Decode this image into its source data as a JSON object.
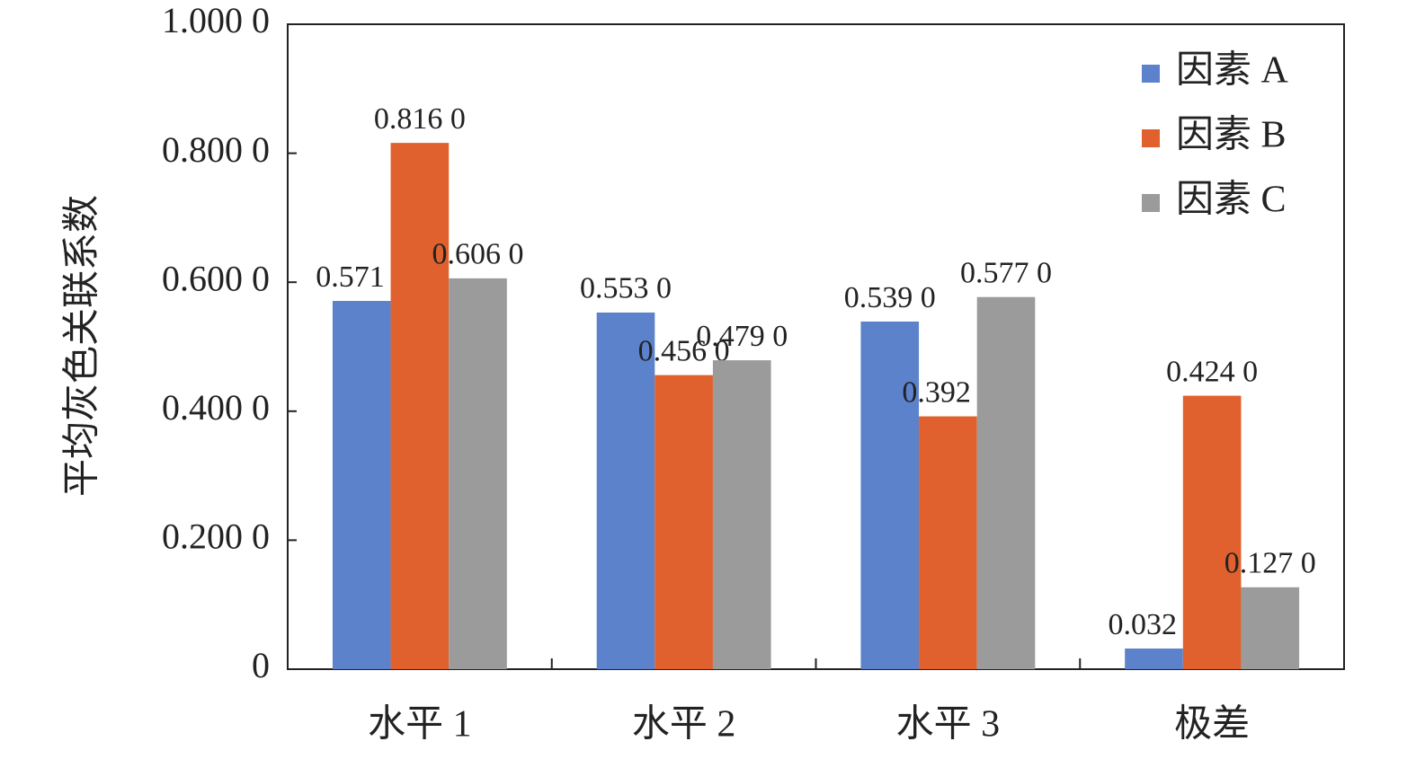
{
  "chart_data": {
    "type": "bar",
    "y_label": "平均灰色关联系数",
    "categories": [
      "水平 1",
      "水平 2",
      "水平 3",
      "极差"
    ],
    "series": [
      {
        "name": "因素 A",
        "color": "#5b82cb",
        "values": [
          0.571,
          0.553,
          0.539,
          0.032
        ],
        "value_labels": [
          "0.571 0",
          "0.553 0",
          "0.539 0",
          "0.032 0"
        ]
      },
      {
        "name": "因素 B",
        "color": "#e0612d",
        "values": [
          0.816,
          0.456,
          0.392,
          0.424
        ],
        "value_labels": [
          "0.816 0",
          "0.456 0",
          "0.392 0",
          "0.424 0"
        ]
      },
      {
        "name": "因素 C",
        "color": "#9b9b9b",
        "values": [
          0.606,
          0.479,
          0.577,
          0.127
        ],
        "value_labels": [
          "0.606 0",
          "0.479 0",
          "0.577 0",
          "0.127 0"
        ]
      }
    ],
    "ylim": [
      0,
      1
    ],
    "yticks": [
      0,
      {
        "value": 0.2,
        "label": "0.200 0"
      },
      {
        "value": 0.4,
        "label": "0.400 0"
      },
      {
        "value": 0.6,
        "label": "0.600 0"
      },
      {
        "value": 0.8,
        "label": "0.800 0"
      },
      {
        "value": 1,
        "label": "1.000 0"
      }
    ],
    "legend": "upper-right"
  }
}
